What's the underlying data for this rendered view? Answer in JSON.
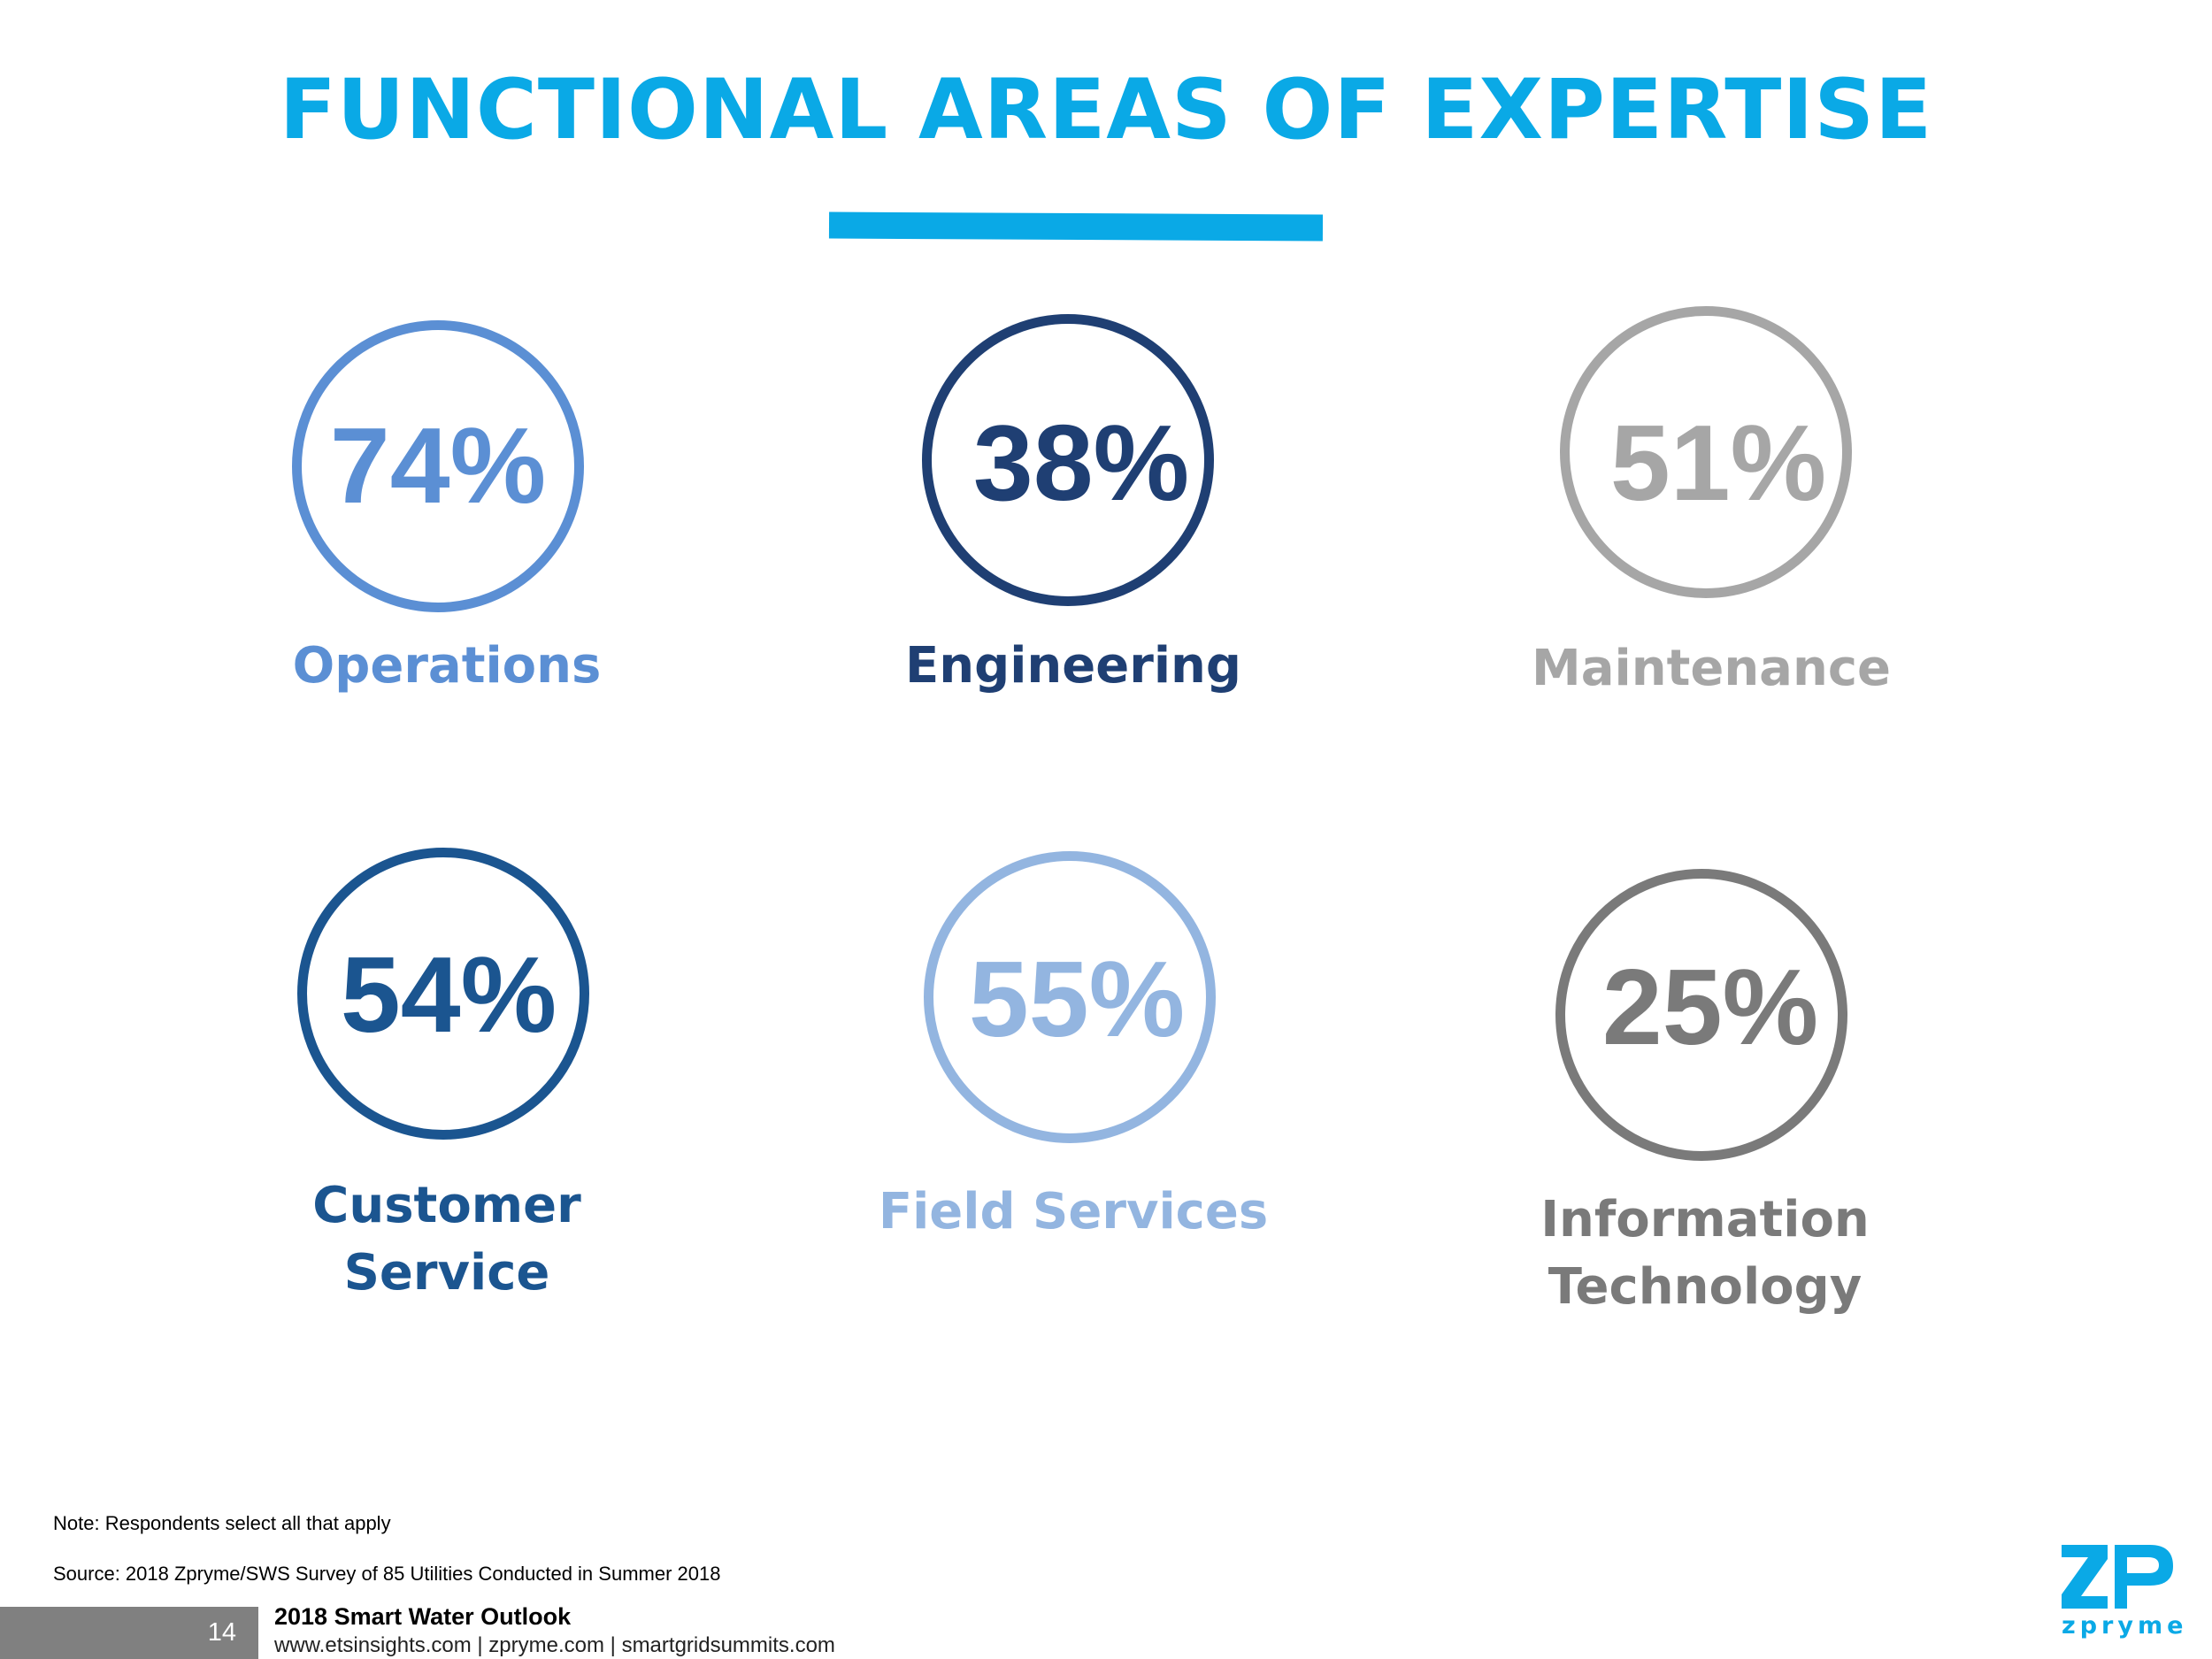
{
  "header": {
    "title": "FUNCTIONAL AREAS OF EXPERTISE"
  },
  "chart_data": {
    "type": "table",
    "categories": [
      "Operations",
      "Engineering",
      "Maintenance",
      "Customer Service",
      "Field Services",
      "Information Technology"
    ],
    "values": [
      74,
      38,
      51,
      54,
      55,
      25
    ],
    "unit": "%"
  },
  "stats": [
    {
      "pct": "74%",
      "label_lines": [
        "Operations"
      ],
      "color": "#5b8fd4"
    },
    {
      "pct": "38%",
      "label_lines": [
        "Engineering"
      ],
      "color": "#1f3f73"
    },
    {
      "pct": "51%",
      "label_lines": [
        "Maintenance"
      ],
      "color": "#a6a6a6"
    },
    {
      "pct": "54%",
      "label_lines": [
        "Customer",
        "Service"
      ],
      "color": "#1b5590"
    },
    {
      "pct": "55%",
      "label_lines": [
        "Field Services"
      ],
      "color": "#93b5e0"
    },
    {
      "pct": "25%",
      "label_lines": [
        "Information",
        "Technology"
      ],
      "color": "#7a7a7a"
    }
  ],
  "footer": {
    "note": "Note: Respondents select all that apply",
    "source": "Source: 2018 Zpryme/SWS Survey of 85 Utilities Conducted in Summer 2018",
    "page_number": "14",
    "report_title": "2018 Smart Water Outlook",
    "links": "www.etsinsights.com | zpryme.com | smartgridsummits.com",
    "logo_text": "zpryme",
    "logo_color": "#0aa9e6"
  }
}
